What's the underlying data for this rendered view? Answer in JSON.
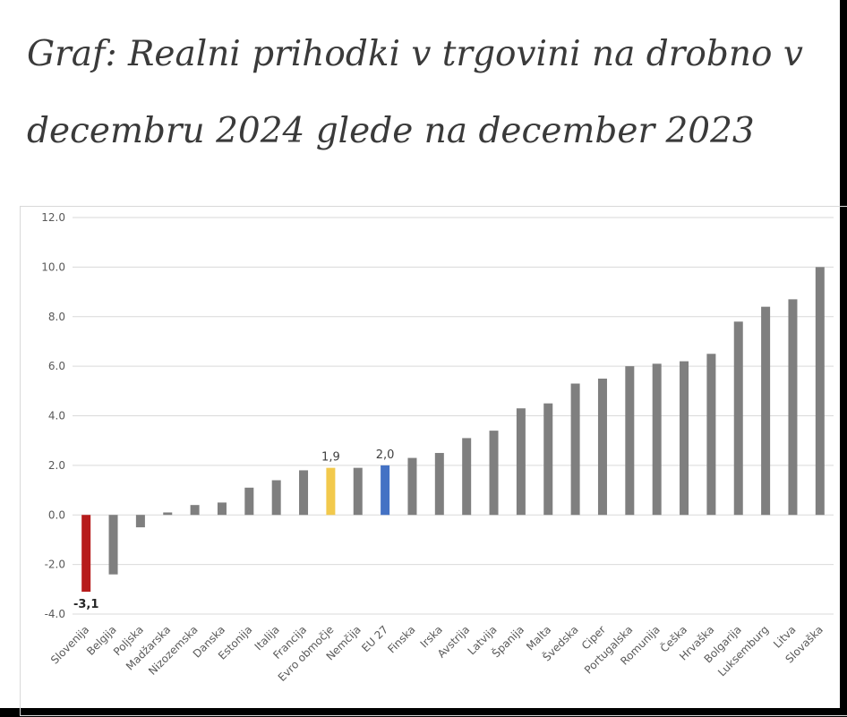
{
  "title": "Graf: Realni prihodki v trgovini na drobno v decembru 2024 glede na december 2023",
  "chart_data": {
    "type": "bar",
    "categories": [
      "Slovenija",
      "Belgija",
      "Poljska",
      "Madžarska",
      "Nizozemska",
      "Danska",
      "Estonija",
      "Italija",
      "Francija",
      "Evro območje",
      "Nemčija",
      "EU 27",
      "Finska",
      "Irska",
      "Avstrija",
      "Latvija",
      "Španija",
      "Malta",
      "Švedska",
      "Ciper",
      "Portugalska",
      "Romunija",
      "Češka",
      "Hrvaška",
      "Bolgarija",
      "Luksemburg",
      "Litva",
      "Slovaška"
    ],
    "values": [
      -3.1,
      -2.4,
      -0.5,
      0.1,
      0.4,
      0.5,
      1.1,
      1.4,
      1.8,
      1.9,
      1.9,
      2.0,
      2.3,
      2.5,
      3.1,
      3.4,
      4.3,
      4.5,
      5.3,
      5.5,
      6.0,
      6.1,
      6.2,
      6.5,
      7.8,
      8.4,
      8.7,
      10.0
    ],
    "colors": {
      "default": "#7f7f7f",
      "Slovenija": "#b71c1c",
      "Evro območje": "#f2c94c",
      "EU 27": "#4472c4",
      "grid": "#d9d9d9"
    },
    "data_labels": [
      {
        "category": "Slovenija",
        "text": "-3,1",
        "bold": true,
        "position": "below"
      },
      {
        "category": "Evro območje",
        "text": "1,9",
        "bold": false,
        "position": "above"
      },
      {
        "category": "EU 27",
        "text": "2,0",
        "bold": false,
        "position": "above"
      }
    ],
    "y_ticks": [
      "12.0",
      "10.0",
      "8.0",
      "6.0",
      "4.0",
      "2.0",
      "0.0",
      "-2.0",
      "-4.0"
    ],
    "ylim": [
      -4,
      12
    ],
    "xlabel": "",
    "ylabel": "",
    "grid": true,
    "legend": "none"
  }
}
